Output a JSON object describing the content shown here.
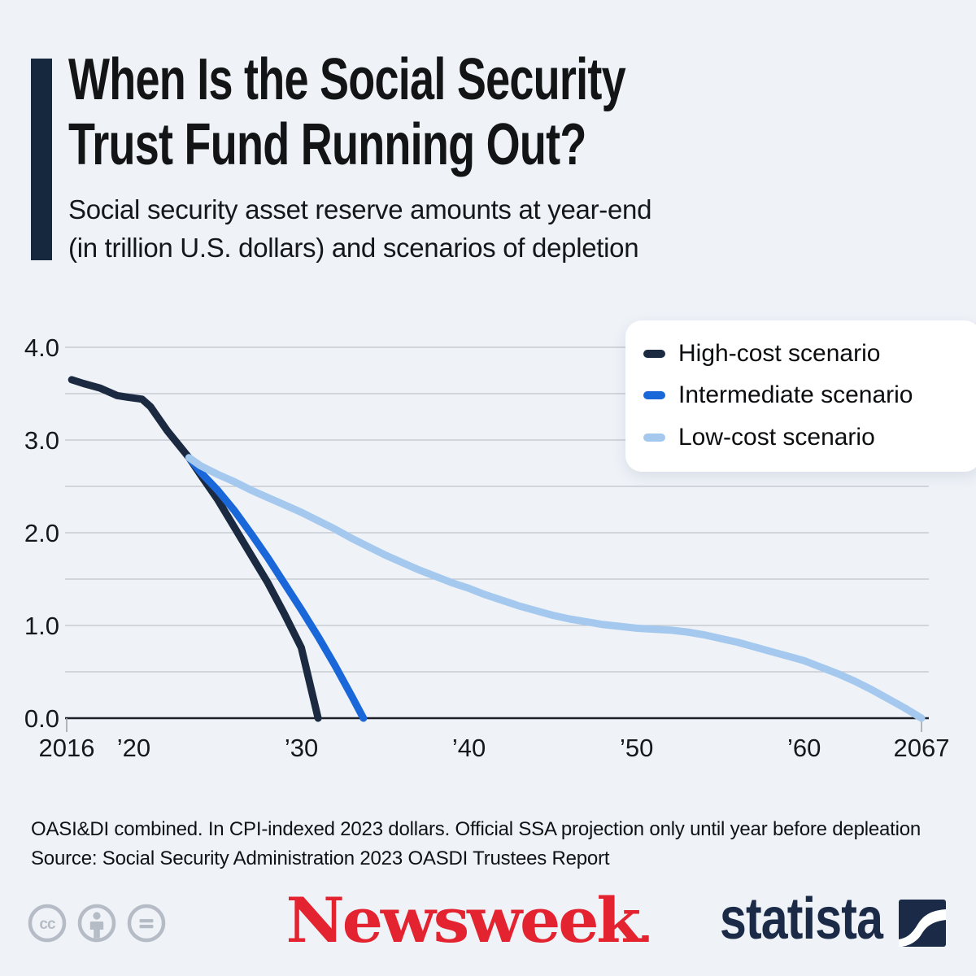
{
  "page": {
    "background": "#eff3f8"
  },
  "header": {
    "accent_color": "#16283e",
    "title_line1": "When Is the Social Security",
    "title_line2": "Trust Fund Running Out?",
    "subtitle_line1": "Social security asset reserve amounts at year-end",
    "subtitle_line2": "(in trillion U.S. dollars) and scenarios of depletion"
  },
  "chart_data": {
    "type": "line",
    "title": "",
    "xlabel": "",
    "ylabel": "",
    "grid": true,
    "legend_position": "top-right",
    "x_axis": {
      "range": [
        2016,
        2067
      ],
      "tick_labels": [
        {
          "year": 2016,
          "label": "2016"
        },
        {
          "year": 2020,
          "label": "’20"
        },
        {
          "year": 2030,
          "label": "’30"
        },
        {
          "year": 2040,
          "label": "’40"
        },
        {
          "year": 2050,
          "label": "’50"
        },
        {
          "year": 2060,
          "label": "’60"
        },
        {
          "year": 2067,
          "label": "2067"
        }
      ],
      "edge_ticks": [
        2016,
        2067
      ]
    },
    "y_axis": {
      "range": [
        0,
        4.0
      ],
      "gridline_values": [
        0,
        0.5,
        1.0,
        1.5,
        2.0,
        2.5,
        3.0,
        3.5,
        4.0
      ],
      "tick_labels": [
        {
          "value": 0,
          "label": "0.0"
        },
        {
          "value": 1,
          "label": "1.0"
        },
        {
          "value": 2,
          "label": "2.0"
        },
        {
          "value": 3,
          "label": "3.0"
        },
        {
          "value": 4,
          "label": "4.0"
        }
      ]
    },
    "series": [
      {
        "name": "High-cost scenario",
        "color": "#1b2a40",
        "points": [
          [
            2016.3,
            3.65
          ],
          [
            2017,
            3.61
          ],
          [
            2018,
            3.56
          ],
          [
            2019,
            3.48
          ],
          [
            2019.7,
            3.46
          ],
          [
            2020.5,
            3.44
          ],
          [
            2021,
            3.36
          ],
          [
            2022,
            3.1
          ],
          [
            2023.3,
            2.81
          ],
          [
            2024,
            2.62
          ],
          [
            2025,
            2.36
          ],
          [
            2026,
            2.06
          ],
          [
            2027,
            1.76
          ],
          [
            2028,
            1.46
          ],
          [
            2029,
            1.12
          ],
          [
            2030,
            0.76
          ],
          [
            2031,
            0.0
          ]
        ]
      },
      {
        "name": "Intermediate scenario",
        "color": "#1a67d9",
        "points": [
          [
            2023.3,
            2.81
          ],
          [
            2024,
            2.65
          ],
          [
            2025,
            2.46
          ],
          [
            2026,
            2.24
          ],
          [
            2027,
            1.99
          ],
          [
            2028,
            1.73
          ],
          [
            2029,
            1.45
          ],
          [
            2030,
            1.17
          ],
          [
            2031,
            0.88
          ],
          [
            2032,
            0.57
          ],
          [
            2033,
            0.24
          ],
          [
            2033.7,
            0.0
          ]
        ]
      },
      {
        "name": "Low-cost scenario",
        "color": "#a5c9ee",
        "points": [
          [
            2023.3,
            2.81
          ],
          [
            2024,
            2.72
          ],
          [
            2025,
            2.63
          ],
          [
            2026,
            2.55
          ],
          [
            2027,
            2.46
          ],
          [
            2028,
            2.38
          ],
          [
            2029,
            2.3
          ],
          [
            2030,
            2.22
          ],
          [
            2031,
            2.13
          ],
          [
            2032,
            2.04
          ],
          [
            2033,
            1.94
          ],
          [
            2034,
            1.85
          ],
          [
            2035,
            1.76
          ],
          [
            2036,
            1.68
          ],
          [
            2037,
            1.6
          ],
          [
            2038,
            1.53
          ],
          [
            2039,
            1.46
          ],
          [
            2040,
            1.4
          ],
          [
            2041,
            1.33
          ],
          [
            2042,
            1.27
          ],
          [
            2043,
            1.21
          ],
          [
            2044,
            1.16
          ],
          [
            2045,
            1.11
          ],
          [
            2046,
            1.07
          ],
          [
            2047,
            1.04
          ],
          [
            2048,
            1.01
          ],
          [
            2049,
            0.99
          ],
          [
            2050,
            0.97
          ],
          [
            2051,
            0.96
          ],
          [
            2052,
            0.95
          ],
          [
            2053,
            0.93
          ],
          [
            2054,
            0.9
          ],
          [
            2055,
            0.86
          ],
          [
            2056,
            0.82
          ],
          [
            2057,
            0.77
          ],
          [
            2058,
            0.72
          ],
          [
            2059,
            0.67
          ],
          [
            2060,
            0.62
          ],
          [
            2061,
            0.55
          ],
          [
            2062,
            0.48
          ],
          [
            2063,
            0.4
          ],
          [
            2064,
            0.31
          ],
          [
            2065,
            0.21
          ],
          [
            2066,
            0.11
          ],
          [
            2067,
            0.0
          ]
        ]
      }
    ]
  },
  "footer": {
    "note": "OASI&DI combined. In CPI-indexed 2023 dollars. Official SSA projection only until year before depleation",
    "source": "Source: Social Security Administration 2023 OASDI Trustees Report",
    "license_icons": [
      {
        "name": "cc-icon",
        "label": "cc"
      },
      {
        "name": "attribution-icon"
      },
      {
        "name": "nd-icon"
      }
    ]
  },
  "logos": {
    "newsweek": {
      "text": "Newsweek",
      "color": "#e42330"
    },
    "statista": {
      "text": "statista",
      "color": "#1b2b47"
    }
  }
}
